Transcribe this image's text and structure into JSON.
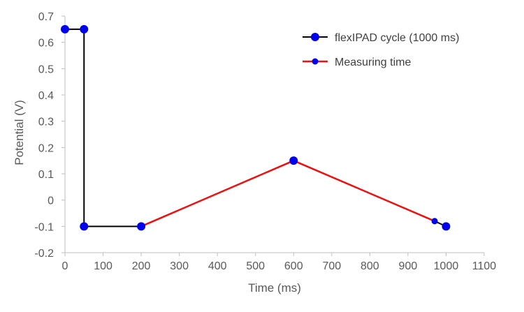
{
  "chart_data": {
    "type": "line",
    "xlabel": "Time (ms)",
    "ylabel": "Potential (V)",
    "xlim": [
      0,
      1100
    ],
    "ylim": [
      -0.2,
      0.7
    ],
    "x_ticks": [
      0,
      100,
      200,
      300,
      400,
      500,
      600,
      700,
      800,
      900,
      1000,
      1100
    ],
    "x_tick_labels": [
      "0",
      "100",
      "200",
      "300",
      "400",
      "500",
      "600",
      "700",
      "800",
      "900",
      "1000",
      "1100"
    ],
    "y_ticks": [
      0.7,
      0.6,
      0.5,
      0.4,
      0.3,
      0.2,
      0.1,
      0,
      -0.1,
      -0.2
    ],
    "y_tick_labels": [
      "0.7",
      "0.6",
      "0.5",
      "0.4",
      "0.3",
      "0.2",
      "0.1",
      "0",
      "-0.1",
      "-0.2"
    ],
    "grid": false,
    "legend_position": "top-right",
    "series": [
      {
        "name": "flexIPAD cycle (1000 ms)",
        "line_color": "#000000",
        "marker_color": "#0000ee",
        "marker": "large-dot",
        "x": [
          0,
          50,
          50,
          200,
          600,
          970,
          1000
        ],
        "y": [
          0.65,
          0.65,
          -0.1,
          -0.1,
          0.15,
          -0.08,
          -0.1
        ]
      },
      {
        "name": "Measuring time",
        "line_color": "#ee1111",
        "marker_color": "#0000ee",
        "marker": "small-dot",
        "x": [
          200,
          600,
          970
        ],
        "y": [
          -0.1,
          0.15,
          -0.08
        ]
      }
    ]
  }
}
